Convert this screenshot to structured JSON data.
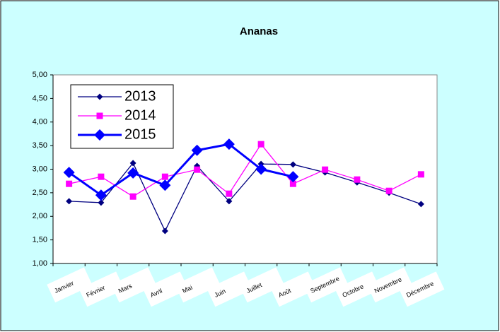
{
  "chart_data": {
    "type": "line",
    "title": "Ananas",
    "categories": [
      "Janvier",
      "Février",
      "Mars",
      "Avril",
      "Mai",
      "Juin",
      "Juillet",
      "Août",
      "Septembre",
      "Octobre",
      "Novembre",
      "Décembre"
    ],
    "series": [
      {
        "name": "2013",
        "color": "#000080",
        "marker": "diamond",
        "values": [
          2.32,
          2.29,
          3.13,
          1.69,
          3.07,
          2.32,
          3.11,
          3.1,
          2.93,
          2.72,
          2.5,
          2.26
        ]
      },
      {
        "name": "2014",
        "color": "#ff00ff",
        "marker": "square",
        "values": [
          2.69,
          2.84,
          2.42,
          2.84,
          2.99,
          2.48,
          3.53,
          2.69,
          2.99,
          2.78,
          2.54,
          2.89
        ]
      },
      {
        "name": "2015",
        "color": "#0000ff",
        "marker": "diamond",
        "values": [
          2.93,
          2.45,
          2.92,
          2.66,
          3.4,
          3.53,
          3.0,
          2.84,
          null,
          null,
          null,
          null
        ]
      }
    ],
    "ylim": [
      1,
      5
    ],
    "yticks": [
      {
        "value": 1,
        "label": "1,00"
      },
      {
        "value": 1.5,
        "label": "1,50"
      },
      {
        "value": 2,
        "label": "2,00"
      },
      {
        "value": 2.5,
        "label": "2,50"
      },
      {
        "value": 3,
        "label": "3,00"
      },
      {
        "value": 3.5,
        "label": "3,50"
      },
      {
        "value": 4,
        "label": "4,00"
      },
      {
        "value": 4.5,
        "label": "4,50"
      },
      {
        "value": 5,
        "label": "5,00"
      }
    ],
    "legend": "top-left"
  }
}
